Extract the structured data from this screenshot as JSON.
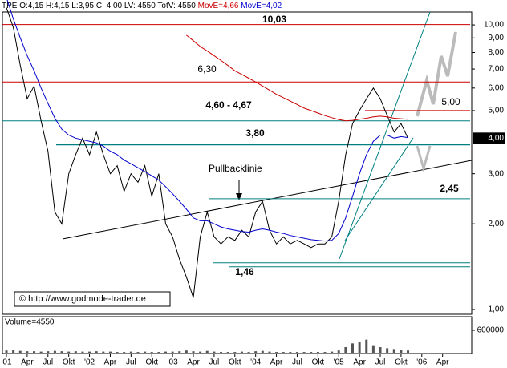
{
  "chart_data": {
    "type": "line",
    "log_scale": true,
    "header": {
      "text": "TPE O:4,15 H:4,15 L:3,95 C: 4,00 LV: 4550 TotV: 4550",
      "ma1": "MovE=4,66",
      "ma2": "MovE=4,02"
    },
    "x": [
      "2001-01",
      "2001-02",
      "2001-03",
      "2001-04",
      "2001-05",
      "2001-06",
      "2001-07",
      "2001-08",
      "2001-09",
      "2001-10",
      "2001-11",
      "2001-12",
      "2002-01",
      "2002-02",
      "2002-03",
      "2002-04",
      "2002-05",
      "2002-06",
      "2002-07",
      "2002-08",
      "2002-09",
      "2002-10",
      "2002-11",
      "2002-12",
      "2003-01",
      "2003-02",
      "2003-03",
      "2003-04",
      "2003-05",
      "2003-06",
      "2003-07",
      "2003-08",
      "2003-09",
      "2003-10",
      "2003-11",
      "2003-12",
      "2004-01",
      "2004-02",
      "2004-03",
      "2004-04",
      "2004-05",
      "2004-06",
      "2004-07",
      "2004-08",
      "2004-09",
      "2004-10",
      "2004-11",
      "2004-12",
      "2005-01",
      "2005-02",
      "2005-03",
      "2005-04",
      "2005-05",
      "2005-06",
      "2005-07",
      "2005-08",
      "2005-09",
      "2005-10",
      "2005-11"
    ],
    "series": [
      {
        "name": "TPE",
        "color": "#000000",
        "values": [
          11.5,
          9.8,
          7.2,
          5.5,
          6.1,
          4.6,
          3.6,
          2.2,
          2.0,
          3.0,
          3.5,
          4.0,
          3.5,
          4.2,
          3.5,
          3.0,
          3.2,
          2.6,
          3.0,
          2.8,
          3.2,
          2.5,
          3.0,
          2.0,
          1.8,
          1.5,
          1.3,
          1.1,
          1.8,
          2.2,
          1.8,
          1.7,
          1.8,
          1.75,
          1.9,
          1.8,
          2.2,
          2.4,
          1.9,
          1.7,
          1.8,
          1.7,
          1.75,
          1.7,
          1.65,
          1.7,
          1.7,
          1.8,
          2.4,
          3.5,
          4.5,
          5.0,
          5.5,
          6.0,
          5.5,
          4.8,
          4.2,
          4.5,
          4.0
        ]
      },
      {
        "name": "MovE=4,66",
        "color": "#cc0000",
        "values": [
          null,
          null,
          null,
          null,
          null,
          null,
          null,
          null,
          null,
          null,
          null,
          null,
          null,
          null,
          null,
          null,
          null,
          null,
          null,
          null,
          null,
          null,
          null,
          null,
          null,
          null,
          9.2,
          8.8,
          8.4,
          8.1,
          7.8,
          7.5,
          7.2,
          6.9,
          6.7,
          6.5,
          6.3,
          6.1,
          5.9,
          5.7,
          5.55,
          5.4,
          5.25,
          5.1,
          5.0,
          4.9,
          4.8,
          4.72,
          4.65,
          4.6,
          4.62,
          4.66,
          4.7,
          4.75,
          4.78,
          4.75,
          4.7,
          4.68,
          4.66
        ]
      },
      {
        "name": "MovE=4,02",
        "color": "#0000cc",
        "values": [
          12.5,
          10.5,
          9.0,
          7.8,
          6.9,
          6.0,
          5.3,
          4.7,
          4.3,
          4.1,
          4.0,
          3.95,
          3.9,
          3.85,
          3.75,
          3.6,
          3.5,
          3.35,
          3.25,
          3.15,
          3.05,
          2.95,
          2.85,
          2.7,
          2.55,
          2.4,
          2.25,
          2.1,
          2.05,
          2.05,
          2.0,
          1.95,
          1.92,
          1.9,
          1.88,
          1.87,
          1.9,
          1.92,
          1.9,
          1.87,
          1.85,
          1.82,
          1.8,
          1.78,
          1.76,
          1.75,
          1.74,
          1.75,
          1.85,
          2.1,
          2.5,
          3.0,
          3.5,
          3.9,
          4.1,
          4.1,
          4.0,
          4.05,
          4.02
        ]
      }
    ],
    "volume": {
      "label": "Volume=4550",
      "color": "#555555",
      "values": [
        60000,
        80000,
        50000,
        40000,
        40000,
        30000,
        40000,
        50000,
        40000,
        30000,
        40000,
        30000,
        30000,
        40000,
        30000,
        30000,
        20000,
        20000,
        30000,
        20000,
        30000,
        20000,
        20000,
        30000,
        30000,
        40000,
        60000,
        40000,
        30000,
        50000,
        30000,
        20000,
        20000,
        20000,
        30000,
        20000,
        40000,
        50000,
        30000,
        20000,
        20000,
        20000,
        20000,
        20000,
        20000,
        20000,
        20000,
        30000,
        60000,
        150000,
        250000,
        300000,
        350000,
        200000,
        150000,
        120000,
        100000,
        80000,
        60000
      ],
      "ylim": [
        0,
        900000
      ],
      "yticks": [
        600000
      ]
    },
    "ylim": [
      0.962,
      11.1
    ],
    "yticks": [
      {
        "value": 1,
        "label": "1,00"
      },
      {
        "value": 2,
        "label": "2,00"
      },
      {
        "value": 3,
        "label": "3,00"
      },
      {
        "value": 5,
        "label": "5,00"
      },
      {
        "value": 6,
        "label": "6,00"
      },
      {
        "value": 7,
        "label": "7,00"
      },
      {
        "value": 8,
        "label": "8,00"
      },
      {
        "value": 9,
        "label": "9,00"
      },
      {
        "value": 10,
        "label": "10,00"
      }
    ],
    "current_price": {
      "value": 4,
      "label": "4,00"
    },
    "xticks": [
      {
        "value": "2001-01",
        "label": "'01"
      },
      {
        "value": "2001-04",
        "label": "Apr"
      },
      {
        "value": "2001-07",
        "label": "Jul"
      },
      {
        "value": "2001-10",
        "label": "Okt"
      },
      {
        "value": "2002-01",
        "label": "'02"
      },
      {
        "value": "2002-04",
        "label": "Apr"
      },
      {
        "value": "2002-07",
        "label": "Jul"
      },
      {
        "value": "2002-10",
        "label": "Okt"
      },
      {
        "value": "2003-01",
        "label": "'03"
      },
      {
        "value": "2003-04",
        "label": "Apr"
      },
      {
        "value": "2003-07",
        "label": "Jul"
      },
      {
        "value": "2003-10",
        "label": "Okt"
      },
      {
        "value": "2004-01",
        "label": "'04"
      },
      {
        "value": "2004-04",
        "label": "Apr"
      },
      {
        "value": "2004-07",
        "label": "Jul"
      },
      {
        "value": "2004-10",
        "label": "Okt"
      },
      {
        "value": "2005-01",
        "label": "'05"
      },
      {
        "value": "2005-04",
        "label": "Apr"
      },
      {
        "value": "2005-07",
        "label": "Jul"
      },
      {
        "value": "2005-10",
        "label": "Okt"
      },
      {
        "value": "2006-01",
        "label": "'06"
      },
      {
        "value": "2006-04",
        "label": "Apr"
      }
    ],
    "levels": [
      {
        "value": 10.03,
        "label": "10,03",
        "color": "#cc0000"
      },
      {
        "value": 6.3,
        "label": "6,30",
        "color": "#cc0000"
      },
      {
        "value": 5.0,
        "label": "5,00",
        "color": "#cc0000"
      },
      {
        "value": 4.67,
        "label": "4,60 - 4,67",
        "color": "#008080"
      },
      {
        "value": 4.6,
        "color": "#008080"
      },
      {
        "value": 3.8,
        "label": "3,80",
        "color": "#008080"
      },
      {
        "value": 2.45,
        "label": "2,45",
        "color": "#008080"
      },
      {
        "value": 1.46,
        "label": "1,46",
        "color": "#008080"
      }
    ],
    "annotations": {
      "pullback": "Pullbacklinie",
      "copyright": "© http://www.godmode-trader.de"
    }
  }
}
